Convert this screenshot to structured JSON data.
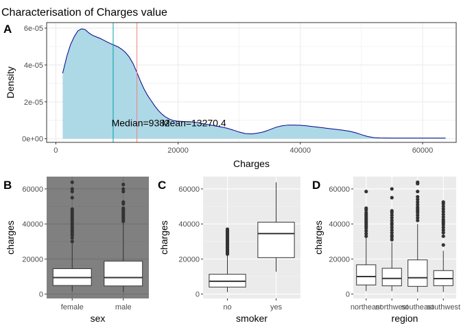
{
  "title": "Characterisation of Charges value",
  "colors": {
    "density_fill": "#add8e6",
    "density_line": "#00008b",
    "median_line": "#00a0a8",
    "mean_line": "#f08080",
    "panel_gray": "#ebebeb",
    "panel_dark": "#808080",
    "grid_white": "#ffffff",
    "grid_light": "#ebebeb"
  },
  "chart_data": [
    {
      "type": "area",
      "panel": "A",
      "xlabel": "Charges",
      "ylabel": "Density",
      "xlim": [
        -1500,
        65500
      ],
      "ylim": [
        -2e-06,
        6.3e-05
      ],
      "x_ticks": [
        0,
        20000,
        40000,
        60000
      ],
      "x_tick_labels": [
        "0",
        "20000",
        "40000",
        "60000"
      ],
      "y_ticks": [
        0,
        2e-05,
        4e-05,
        6e-05
      ],
      "y_tick_labels": [
        "0e+00",
        "2e-05",
        "4e-05",
        "6e-05"
      ],
      "grid": true,
      "x": [
        1122,
        1800,
        2400,
        3000,
        3600,
        4200,
        4800,
        5400,
        6000,
        6600,
        7200,
        7800,
        8400,
        9000,
        9600,
        10200,
        10800,
        11400,
        12000,
        12600,
        13200,
        13800,
        14400,
        15000,
        15600,
        16200,
        16800,
        17400,
        18000,
        18600,
        19200,
        19800,
        20400,
        21000,
        22000,
        23000,
        24000,
        25000,
        26000,
        27000,
        28000,
        29000,
        30000,
        31000,
        32000,
        33000,
        34000,
        35000,
        36000,
        37000,
        38000,
        39000,
        40000,
        41000,
        42000,
        43000,
        44000,
        45000,
        46000,
        47000,
        48000,
        49000,
        50000,
        51000,
        52000,
        53000,
        55000,
        58000,
        61000,
        63770
      ],
      "y": [
        3.55e-05,
        4.47e-05,
        5.1e-05,
        5.53e-05,
        5.85e-05,
        5.96e-05,
        5.92e-05,
        5.74e-05,
        5.61e-05,
        5.53e-05,
        5.45e-05,
        5.35e-05,
        5.25e-05,
        5.15e-05,
        5.07e-05,
        4.98e-05,
        4.85e-05,
        4.68e-05,
        4.44e-05,
        4.1e-05,
        3.65e-05,
        3.16e-05,
        2.72e-05,
        2.36e-05,
        2.06e-05,
        1.77e-05,
        1.52e-05,
        1.32e-05,
        1.17e-05,
        1.06e-05,
        9.9e-06,
        9.5e-06,
        9.4e-06,
        9.3e-06,
        9.2e-06,
        8.8e-06,
        8.2e-06,
        7.6e-06,
        7e-06,
        6.4e-06,
        5.7e-06,
        4.7e-06,
        3.6e-06,
        2.8e-06,
        2.6e-06,
        3e-06,
        3.7e-06,
        4.9e-06,
        6.2e-06,
        7e-06,
        7.4e-06,
        7.4e-06,
        7.3e-06,
        7e-06,
        6.6e-06,
        6.2e-06,
        5.8e-06,
        5.4e-06,
        5e-06,
        4.6e-06,
        4.1e-06,
        3.3e-06,
        2.2e-06,
        1.2e-06,
        6e-07,
        4e-07,
        3e-07,
        3e-07,
        3e-07,
        3e-07
      ],
      "vlines": [
        {
          "x": 9382,
          "color": "#00a0a8"
        },
        {
          "x": 13270.4,
          "color": "#f08080"
        }
      ],
      "annotations": [
        {
          "text": "Median=9382",
          "x": 13900,
          "y": 8.5e-06
        },
        {
          "text": "Mean=13270.4",
          "x": 22600,
          "y": 8.5e-06
        }
      ]
    },
    {
      "type": "box",
      "panel": "B",
      "xlabel": "sex",
      "ylabel": "charges",
      "ylim": [
        -2500,
        67000
      ],
      "y_ticks": [
        0,
        20000,
        40000,
        60000
      ],
      "y_tick_labels": [
        "0",
        "20000",
        "40000",
        "60000"
      ],
      "theme": "dark",
      "categories": [
        "female",
        "male"
      ],
      "boxes": [
        {
          "q1": 4900,
          "median": 9400,
          "q3": 14500,
          "whisker_low": 1600,
          "whisker_high": 28900
        },
        {
          "q1": 4650,
          "median": 9400,
          "q3": 18800,
          "whisker_low": 1100,
          "whisker_high": 40500
        }
      ],
      "outliers": [
        [
          30000,
          32000,
          33500,
          34500,
          35500,
          36500,
          37500,
          38500,
          39500,
          40500,
          41500,
          42500,
          43500,
          44500,
          45500,
          46500,
          47500,
          48500,
          55000,
          58500,
          60000,
          63800
        ],
        [
          41500,
          42500,
          43500,
          44500,
          45500,
          46500,
          47500,
          48500,
          49000,
          51500,
          52500,
          58500,
          60000,
          62500
        ]
      ]
    },
    {
      "type": "box",
      "panel": "C",
      "xlabel": "smoker",
      "ylabel": "charges",
      "ylim": [
        -2500,
        67000
      ],
      "y_ticks": [
        0,
        20000,
        40000,
        60000
      ],
      "y_tick_labels": [
        "0",
        "20000",
        "40000",
        "60000"
      ],
      "theme": "gray",
      "categories": [
        "no",
        "yes"
      ],
      "boxes": [
        {
          "q1": 4000,
          "median": 7300,
          "q3": 11300,
          "whisker_low": 1100,
          "whisker_high": 22400
        },
        {
          "q1": 20800,
          "median": 34500,
          "q3": 41000,
          "whisker_low": 12800,
          "whisker_high": 63800
        }
      ],
      "outliers": [
        [
          22800,
          23500,
          24300,
          25000,
          25800,
          26500,
          27200,
          28000,
          28700,
          29500,
          30300,
          31000,
          31800,
          32500,
          33200,
          34000,
          34800,
          35500,
          36300,
          37000
        ],
        []
      ]
    },
    {
      "type": "box",
      "panel": "D",
      "xlabel": "region",
      "ylabel": "charges",
      "ylim": [
        -2500,
        67000
      ],
      "y_ticks": [
        0,
        20000,
        40000,
        60000
      ],
      "y_tick_labels": [
        "0",
        "20000",
        "40000",
        "60000"
      ],
      "theme": "gray",
      "categories": [
        "northeast",
        "northwest",
        "southeast",
        "southwest"
      ],
      "boxes": [
        {
          "q1": 5200,
          "median": 10000,
          "q3": 16700,
          "whisker_low": 1700,
          "whisker_high": 32100
        },
        {
          "q1": 4700,
          "median": 8900,
          "q3": 14700,
          "whisker_low": 1600,
          "whisker_high": 29500
        },
        {
          "q1": 4400,
          "median": 9300,
          "q3": 19500,
          "whisker_low": 1100,
          "whisker_high": 40000
        },
        {
          "q1": 4800,
          "median": 8800,
          "q3": 13400,
          "whisker_low": 1200,
          "whisker_high": 24700
        }
      ],
      "outliers": [
        [
          33000,
          34500,
          36000,
          37500,
          38500,
          39500,
          40500,
          41500,
          42500,
          43500,
          44500,
          45500,
          46500,
          48000,
          49000,
          58500
        ],
        [
          31000,
          32500,
          33500,
          35000,
          36500,
          38000,
          39500,
          40500,
          42000,
          43500,
          45000,
          46500,
          47500,
          55000,
          60000
        ],
        [
          42000,
          43500,
          45000,
          46500,
          47500,
          48500,
          49500,
          51000,
          52500,
          54000,
          55500,
          58500,
          63000,
          63800
        ],
        [
          28000,
          33000,
          35000,
          36500,
          38000,
          39500,
          40500,
          41500,
          42500,
          44000,
          45500,
          47000,
          48500,
          50000,
          51500,
          52500
        ]
      ]
    }
  ]
}
